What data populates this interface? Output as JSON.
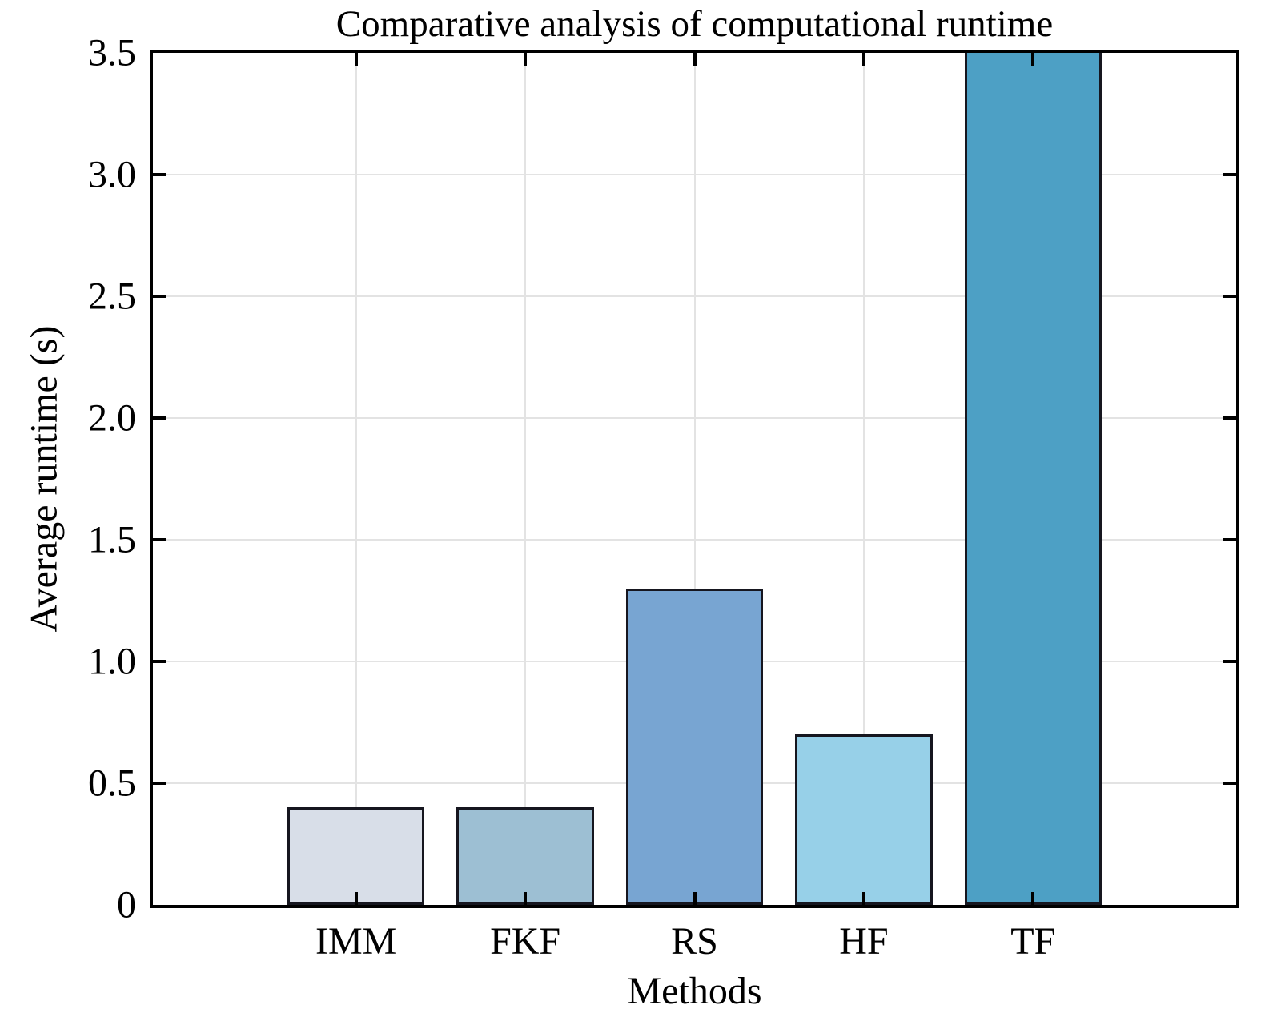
{
  "chart_data": {
    "type": "bar",
    "title": "Comparative analysis of computational runtime",
    "xlabel": "Methods",
    "ylabel": "Average runtime (s)",
    "categories": [
      "IMM",
      "FKF",
      "RS",
      "HF",
      "TF"
    ],
    "values": [
      0.4,
      0.4,
      1.3,
      0.7,
      3.5
    ],
    "clipped_at_top": [
      false,
      false,
      false,
      false,
      true
    ],
    "bar_colors": [
      "#d8dee8",
      "#9dbfd3",
      "#78a5d2",
      "#97d0e8",
      "#4da0c5"
    ],
    "bar_edge_color": "#16161f",
    "ylim": [
      0,
      3.5
    ],
    "yticks": [
      0,
      0.5,
      1.0,
      1.5,
      2.0,
      2.5,
      3.0,
      3.5
    ],
    "ytick_labels": [
      "0",
      "0.5",
      "1.0",
      "1.5",
      "2.0",
      "2.5",
      "3.0",
      "3.5"
    ],
    "grid": true,
    "grid_color": "#e3e3e3",
    "axis_color": "#000000",
    "background_color": "#ffffff",
    "legend_position": "none"
  }
}
